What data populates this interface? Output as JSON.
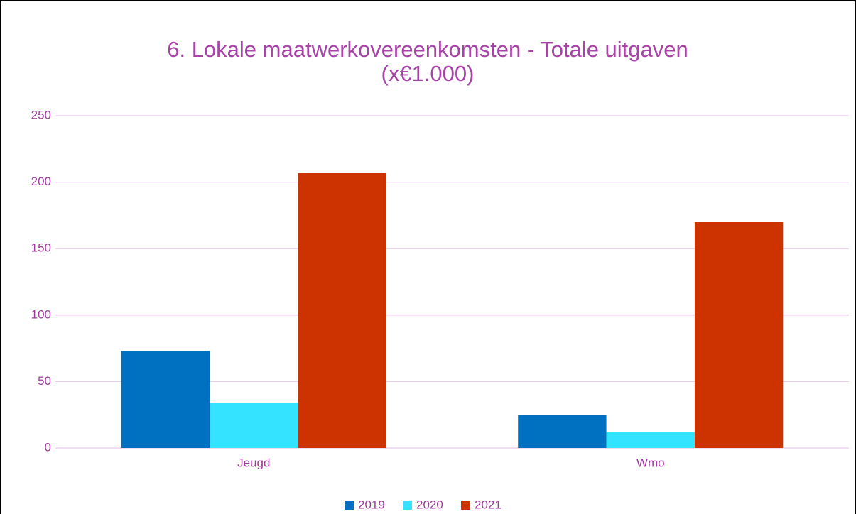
{
  "chart_data": {
    "type": "bar",
    "title": [
      "6. Lokale maatwerkovereenkomsten - Totale uitgaven",
      "(x€1.000)"
    ],
    "categories": [
      "Jeugd",
      "Wmo"
    ],
    "series": [
      {
        "name": "2019",
        "color": "#0070c0",
        "values": [
          73,
          25
        ]
      },
      {
        "name": "2020",
        "color": "#33e3ff",
        "values": [
          34,
          12
        ]
      },
      {
        "name": "2021",
        "color": "#cc3300",
        "values": [
          207,
          170
        ]
      }
    ],
    "ylim": [
      0,
      250
    ],
    "yticks": [
      0,
      50,
      100,
      150,
      200,
      250
    ],
    "grid": true,
    "legend": "bottom"
  }
}
